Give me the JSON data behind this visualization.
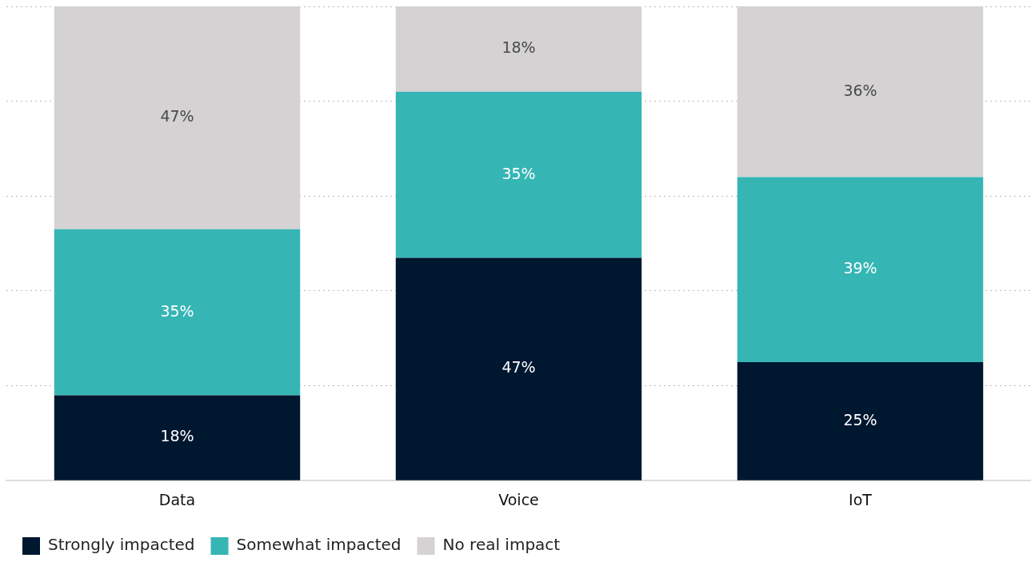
{
  "chart_data": {
    "type": "bar",
    "stacked": true,
    "categories": [
      "Data",
      "Voice",
      "IoT"
    ],
    "series": [
      {
        "name": "Strongly impacted",
        "color": "#001730",
        "values": [
          18,
          47,
          25
        ],
        "value_labels": [
          "18%",
          "47%",
          "25%"
        ]
      },
      {
        "name": "Somewhat impacted",
        "color": "#36b5b5",
        "values": [
          35,
          35,
          39
        ],
        "value_labels": [
          "35%",
          "35%",
          "39%"
        ]
      },
      {
        "name": "No real impact",
        "color": "#d4d2d3",
        "values": [
          47,
          18,
          36
        ],
        "value_labels": [
          "47%",
          "18%",
          "36%"
        ]
      }
    ],
    "ylim": [
      0,
      100
    ],
    "yticks": [
      0,
      20,
      40,
      60,
      80,
      100
    ],
    "grid": "y",
    "legend": "bottom left",
    "tick_labels": "x"
  }
}
